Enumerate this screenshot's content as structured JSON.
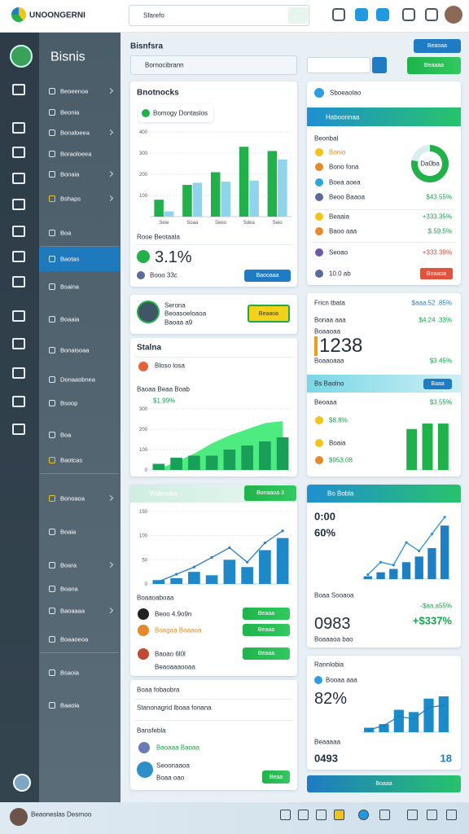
{
  "topbar": {
    "logo": "UNOONGERNI",
    "search": "Sfarefo"
  },
  "sidebar": {
    "title": "Bisnis",
    "items": [
      "Beoeenoa",
      "Beonia",
      "Bonaloeea",
      "Boraoloeea",
      "Bonaia",
      "Bshaps",
      "Boa",
      "Baotas",
      "Bsaina",
      "Boaaia",
      "Bonaisoaa",
      "Donaaobnea",
      "Bsoop",
      "Boa",
      "Baotcas",
      "Bonoaoa",
      "Boaia",
      "Boara",
      "Boana",
      "Baoaaaa",
      "Boaaoeoa",
      "Bsaoia",
      "Baaoia"
    ]
  },
  "footer": {
    "user": "Beaoneslas Desrnoo"
  },
  "main": {
    "title": "Bisnfsra",
    "search": "Bornocibrann",
    "top_button": "Beaoaa",
    "action_button": "Beaaaa"
  },
  "left": {
    "analytics": {
      "title": "Bnotnocks",
      "badge": "Bomogy Dontaslos",
      "chart": {
        "type": "bar",
        "categories": [
          "Seie",
          "Soaa",
          "Seeo",
          "Sdea",
          "Seio"
        ],
        "ylim": [
          0,
          400
        ],
        "yticks": [
          100,
          200,
          300,
          400
        ],
        "series": [
          {
            "color": "#22b04a",
            "values": [
              80,
              150,
              210,
              330,
              310
            ]
          },
          {
            "color": "#8fd3ec",
            "values": [
              25,
              160,
              165,
              170,
              270
            ]
          }
        ]
      },
      "subtitle": "Rooe Beotaala",
      "stat": "3.1%",
      "stat_label": "Booo 33c",
      "button": "Baooaaa"
    },
    "profile": {
      "name": "Serona",
      "line1": "Beoasoeloaoa",
      "line2": "Baoaa a9",
      "button": "Beaaoa"
    },
    "status": {
      "title": "Stalna",
      "label": "Bloso losa",
      "caption": "Baoaa Beaa Boab",
      "stat": "$1.99%",
      "chart": {
        "type": "bar",
        "ylim": [
          0,
          300
        ],
        "yticks": [
          0,
          100,
          200,
          300
        ],
        "series": [
          {
            "type": "area",
            "color": "#2ee86a",
            "values": [
              5,
              40,
              80,
              130,
              170,
              200,
              230,
              240
            ]
          },
          {
            "color": "#18a058",
            "values": [
              30,
              60,
              70,
              70,
              100,
              120,
              140,
              160
            ]
          }
        ]
      }
    },
    "winners": {
      "title": "Wiannara",
      "button": "Bonaaoa 3",
      "chart": {
        "type": "bar",
        "ylim": [
          0,
          150
        ],
        "yticks": [
          0,
          50,
          100,
          150
        ],
        "series": [
          {
            "color": "#1e88c8",
            "values": [
              8,
              12,
              25,
              18,
              50,
              35,
              70,
              95
            ]
          },
          {
            "type": "line",
            "color": "#2a7fc0",
            "values": [
              5,
              20,
              35,
              55,
              75,
              45,
              85,
              110
            ]
          }
        ]
      },
      "subtitle": "Boaaoaboaa",
      "rows": [
        {
          "text": "Beoo 4.9o9n",
          "button": "Beaaa"
        },
        {
          "text": "Boagaa Boaaoa",
          "button": "Beaaa"
        },
        {
          "text": "Baoao 6l0l",
          "sub": "Beaoaaaooaa",
          "button": "Beaaa"
        }
      ]
    },
    "lists": {
      "row1": "Boaa fobaobra",
      "row2": "Stanonagrid lboaa fonana",
      "title": "Bansfebla",
      "item1": "Baoaaa Baoaa",
      "item2": "Seoonaaoa",
      "item2_sub": "Boaa oao",
      "button": "Beaa"
    }
  },
  "right": {
    "summary": {
      "title": "Sboeaolao",
      "banner": "Haboonnaa",
      "section": "Beonbal",
      "items": [
        "Bonio",
        "Bono fona",
        "Boea aoea",
        "Beoo Baaoa"
      ],
      "item_value": "$43.55%",
      "donut": "Da0ba",
      "rows": [
        {
          "label": "Beaaia",
          "value": "+333.35%"
        },
        {
          "label": "Baoo aaa",
          "value": "$.59.5%"
        },
        {
          "label": "Seoao",
          "value": "+333.39%"
        }
      ],
      "footer": "10.0 ab",
      "button": "Boaaoa"
    },
    "stats": {
      "title": "Fricn tbata",
      "title_value": "$aaa.52 .85%",
      "line1": "Bonaa aaa",
      "line1_value": "$4.24 .33%",
      "line2": "Boaaoaa",
      "big": "1238",
      "caption": "Boaaoaaa",
      "caption_value": "$3.45%",
      "banner": "Bs Baolno",
      "chip": "Baaa",
      "sub": "Beoaaa",
      "sub_value": "$3.55%",
      "items": [
        "$8.8%",
        "Boaia",
        "$953.08"
      ],
      "chart": {
        "type": "bar",
        "ylim": [
          0,
          100
        ],
        "series": [
          {
            "color": "#1fb24a",
            "values": [
              75,
              85,
              85
            ]
          }
        ]
      }
    },
    "trend": {
      "title": "Bo Bobla",
      "v1": "0:00",
      "v2": "60%",
      "chart": {
        "type": "bar",
        "ylim": [
          0,
          120
        ],
        "series": [
          {
            "color": "#1e7fc4",
            "values": [
              5,
              12,
              18,
              30,
              40,
              55,
              95
            ]
          },
          {
            "type": "line",
            "color": "#2a8fd0",
            "values": [
              8,
              30,
              25,
              65,
              50,
              80,
              110
            ]
          }
        ]
      },
      "label": "Boaa Sooaoa",
      "label_value": "-$aa.a55%",
      "big": "0983",
      "big_value": "+$337%",
      "caption": "Boaaaoa bao"
    },
    "rank": {
      "title": "Rannlobia",
      "sub": "Booaa aaa",
      "pct": "82%",
      "chart": {
        "type": "bar",
        "ylim": [
          0,
          100
        ],
        "series": [
          {
            "color": "#1b8cc9",
            "values": [
              10,
              18,
              50,
              45,
              75,
              80
            ]
          },
          {
            "type": "line",
            "color": "#1b7fbf",
            "values": [
              5,
              15,
              35,
              30,
              55,
              60
            ]
          }
        ]
      },
      "caption": "Beaaaaa",
      "big": "0493",
      "count": "18",
      "button": "Boaaa"
    }
  }
}
